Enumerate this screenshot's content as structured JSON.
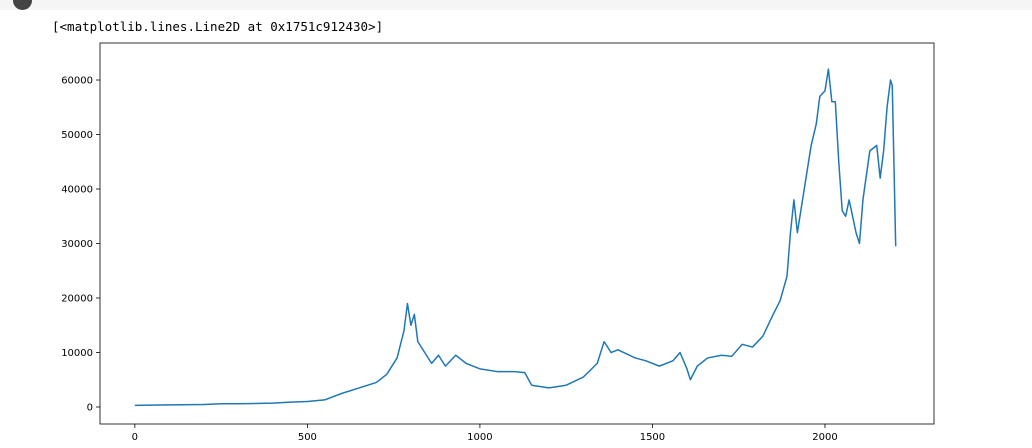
{
  "output_text": "[<matplotlib.lines.Line2D at 0x1751c912430>]",
  "chart_data": {
    "type": "line",
    "x": [
      0,
      100,
      200,
      250,
      300,
      400,
      450,
      500,
      550,
      600,
      650,
      700,
      730,
      760,
      780,
      790,
      800,
      810,
      820,
      840,
      860,
      880,
      900,
      930,
      960,
      1000,
      1050,
      1100,
      1130,
      1150,
      1200,
      1250,
      1300,
      1340,
      1360,
      1380,
      1400,
      1450,
      1480,
      1520,
      1560,
      1580,
      1600,
      1610,
      1630,
      1660,
      1700,
      1730,
      1760,
      1790,
      1820,
      1850,
      1870,
      1890,
      1900,
      1910,
      1920,
      1940,
      1960,
      1975,
      1985,
      2000,
      2010,
      2020,
      2030,
      2040,
      2050,
      2060,
      2070,
      2090,
      2100,
      2110,
      2130,
      2150,
      2160,
      2170,
      2180,
      2190,
      2195,
      2205
    ],
    "series": [
      {
        "color": "#1f77b4",
        "values": [
          300,
          400,
          450,
          600,
          600,
          700,
          900,
          1000,
          1300,
          2500,
          3500,
          4500,
          6000,
          9000,
          14000,
          19000,
          15000,
          17000,
          12000,
          10000,
          8000,
          9500,
          7500,
          9500,
          8000,
          7000,
          6500,
          6500,
          6300,
          4000,
          3500,
          4000,
          5500,
          8000,
          12000,
          10000,
          10500,
          9000,
          8500,
          7500,
          8500,
          10000,
          7000,
          5000,
          7500,
          9000,
          9500,
          9300,
          11500,
          11000,
          13000,
          17000,
          19500,
          24000,
          32000,
          38000,
          32000,
          40000,
          48000,
          52000,
          57000,
          58000,
          62000,
          56000,
          56000,
          45000,
          36000,
          35000,
          38000,
          32000,
          30000,
          38000,
          47000,
          48000,
          42000,
          47000,
          55000,
          60000,
          59000,
          29500
        ]
      }
    ],
    "xlim": [
      -101,
      2316
    ],
    "ylim": [
      -3120,
      66790
    ],
    "xticks": [
      0,
      500,
      1000,
      1500,
      2000
    ],
    "yticks": [
      0,
      10000,
      20000,
      30000,
      40000,
      50000,
      60000
    ]
  }
}
